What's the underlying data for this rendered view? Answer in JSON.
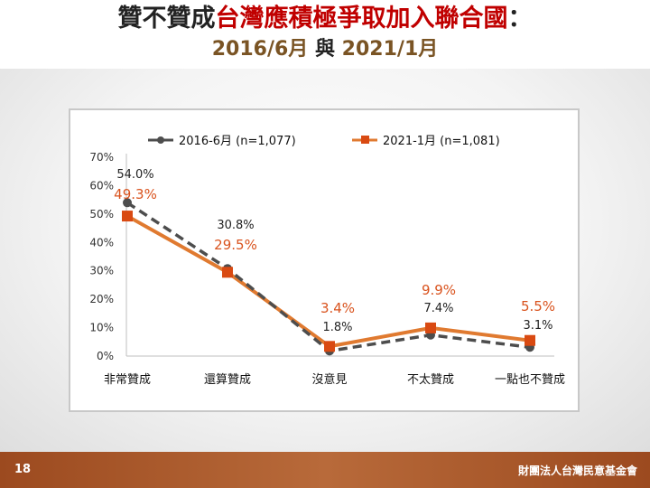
{
  "title": {
    "line1_part1": "贊不贊成",
    "line1_highlight": "台灣應積極爭取加入聯合國",
    "line1_colon": "：",
    "line2_date1": "2016/6月",
    "line2_connector": "與",
    "line2_date2": "2021/1月"
  },
  "footer": {
    "page_number": "18",
    "organization": "財團法人台灣民意基金會"
  },
  "colors": {
    "series_2016": "#4d4d4d",
    "series_2021": "#e07a30",
    "marker_2021": "#d94a12",
    "label_2021": "#d9531e",
    "title_highlight": "#c00000",
    "footer_bar": "#a85a2c"
  },
  "chart_data": {
    "type": "line",
    "categories": [
      "非常贊成",
      "還算贊成",
      "沒意見",
      "不太贊成",
      "一點也不贊成"
    ],
    "y_ticks": [
      "0%",
      "10%",
      "20%",
      "30%",
      "40%",
      "50%",
      "60%",
      "70%"
    ],
    "ylim": [
      0,
      70
    ],
    "grid": false,
    "legend_position": "top",
    "series": [
      {
        "name": "2016-6月  (n=1,077)",
        "values": [
          54.0,
          30.8,
          1.8,
          7.4,
          3.1
        ],
        "labels": [
          "54.0%",
          "30.8%",
          "1.8%",
          "7.4%",
          "3.1%"
        ],
        "style": "dashed"
      },
      {
        "name": "2021-1月  (n=1,081)",
        "values": [
          49.3,
          29.5,
          3.4,
          9.9,
          5.5
        ],
        "labels": [
          "49.3%",
          "29.5%",
          "3.4%",
          "9.9%",
          "5.5%"
        ],
        "style": "solid"
      }
    ]
  }
}
